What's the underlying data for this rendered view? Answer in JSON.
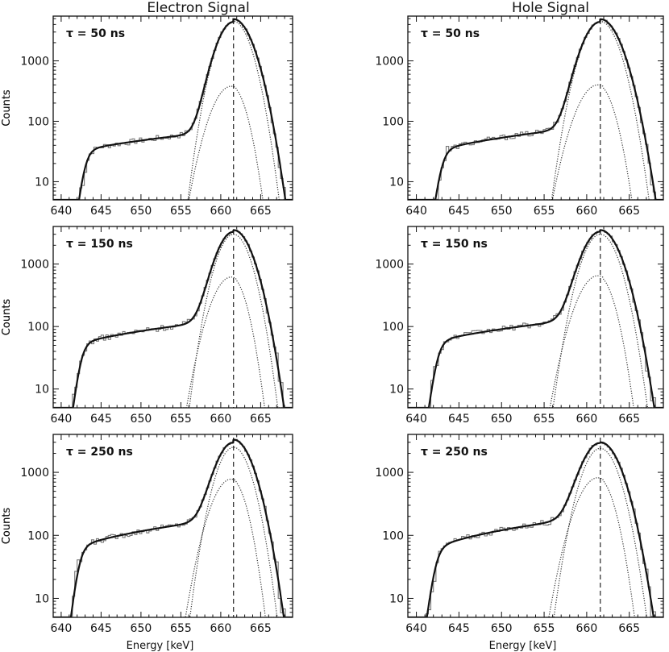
{
  "column_titles": [
    "Electron Signal",
    "Hole Signal"
  ],
  "chart_data": [
    {
      "type": "line",
      "panel": "electron-tau-50",
      "annotation": "τ = 50 ns",
      "xlabel": "",
      "ylabel": "Counts",
      "xlim": [
        639,
        669
      ],
      "ylim": [
        5,
        5500
      ],
      "yscale": "log",
      "peak_position": 661.6,
      "xticks": [
        640,
        645,
        650,
        655,
        660,
        665
      ],
      "yticks": [
        10,
        100,
        1000
      ],
      "ytick_labels": [
        "10",
        "100",
        "1000"
      ],
      "model": {
        "total_peak": 4900,
        "gauss_peak": 4500,
        "tail_peak": 380,
        "plateau_a": 38,
        "plateau_b": 62,
        "onset": 643.0
      }
    },
    {
      "type": "line",
      "panel": "hole-tau-50",
      "annotation": "τ = 50 ns",
      "xlabel": "",
      "ylabel": "Counts",
      "xlim": [
        639,
        669
      ],
      "ylim": [
        5,
        5500
      ],
      "yscale": "log",
      "peak_position": 661.6,
      "xticks": [
        640,
        645,
        650,
        655,
        660,
        665
      ],
      "yticks": [
        10,
        100,
        1000
      ],
      "ytick_labels": [
        "10",
        "100",
        "1000"
      ],
      "model": {
        "total_peak": 4900,
        "gauss_peak": 4500,
        "tail_peak": 400,
        "plateau_a": 40,
        "plateau_b": 72,
        "onset": 643.0
      }
    },
    {
      "type": "line",
      "panel": "electron-tau-150",
      "annotation": "τ = 150 ns",
      "xlabel": "",
      "ylabel": "Counts",
      "xlim": [
        639,
        669
      ],
      "ylim": [
        5,
        4000
      ],
      "yscale": "log",
      "peak_position": 661.6,
      "xticks": [
        640,
        645,
        650,
        655,
        660,
        665
      ],
      "yticks": [
        10,
        100,
        1000
      ],
      "ytick_labels": [
        "10",
        "100",
        "1000"
      ],
      "model": {
        "total_peak": 3500,
        "gauss_peak": 3000,
        "tail_peak": 620,
        "plateau_a": 65,
        "plateau_b": 112,
        "onset": 642.5
      }
    },
    {
      "type": "line",
      "panel": "hole-tau-150",
      "annotation": "τ = 150 ns",
      "xlabel": "",
      "ylabel": "Counts",
      "xlim": [
        639,
        669
      ],
      "ylim": [
        5,
        4000
      ],
      "yscale": "log",
      "peak_position": 661.6,
      "xticks": [
        640,
        645,
        650,
        655,
        660,
        665
      ],
      "yticks": [
        10,
        100,
        1000
      ],
      "ytick_labels": [
        "10",
        "100",
        "1000"
      ],
      "model": {
        "total_peak": 3500,
        "gauss_peak": 3000,
        "tail_peak": 650,
        "plateau_a": 70,
        "plateau_b": 120,
        "onset": 642.5
      }
    },
    {
      "type": "line",
      "panel": "electron-tau-250",
      "annotation": "τ = 250 ns",
      "xlabel": "Energy [keV]",
      "ylabel": "Counts",
      "xlim": [
        639,
        669
      ],
      "ylim": [
        5,
        4000
      ],
      "yscale": "log",
      "peak_position": 661.6,
      "xticks": [
        640,
        645,
        650,
        655,
        660,
        665
      ],
      "yticks": [
        10,
        100,
        1000
      ],
      "ytick_labels": [
        "10",
        "100",
        "1000"
      ],
      "model": {
        "total_peak": 3300,
        "gauss_peak": 2500,
        "tail_peak": 780,
        "plateau_a": 85,
        "plateau_b": 160,
        "onset": 642.3
      }
    },
    {
      "type": "line",
      "panel": "hole-tau-250",
      "annotation": "τ = 250 ns",
      "xlabel": "Energy [keV]",
      "ylabel": "Counts",
      "xlim": [
        639,
        669
      ],
      "ylim": [
        5,
        4000
      ],
      "yscale": "log",
      "peak_position": 661.6,
      "xticks": [
        640,
        645,
        650,
        655,
        660,
        665
      ],
      "yticks": [
        10,
        100,
        1000
      ],
      "ytick_labels": [
        "10",
        "100",
        "1000"
      ],
      "model": {
        "total_peak": 3000,
        "gauss_peak": 2400,
        "tail_peak": 820,
        "plateau_a": 85,
        "plateau_b": 170,
        "onset": 642.3
      }
    }
  ]
}
